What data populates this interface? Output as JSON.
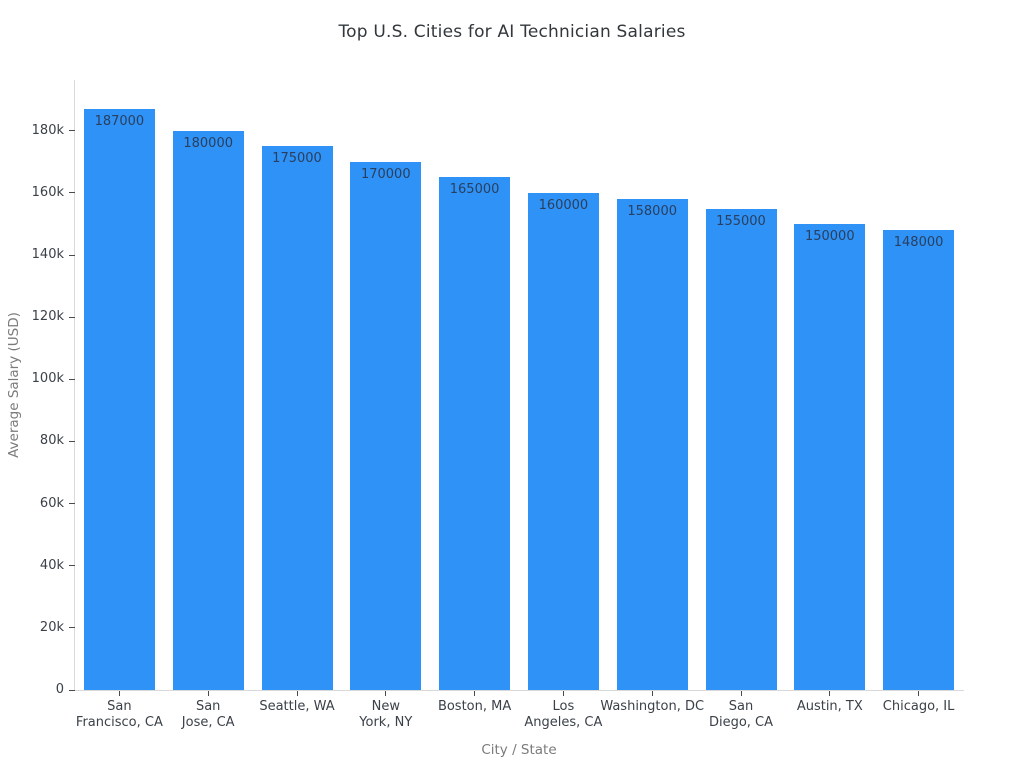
{
  "figure": {
    "background": "#ffffff"
  },
  "chart_data": {
    "type": "bar",
    "title": "Top U.S. Cities for AI Technician Salaries",
    "xlabel": "City / State",
    "ylabel": "Average Salary (USD)",
    "categories": [
      "San Francisco, CA",
      "San Jose, CA",
      "Seattle, WA",
      "New York, NY",
      "Boston, MA",
      "Los Angeles, CA",
      "Washington, DC",
      "San Diego, CA",
      "Austin, TX",
      "Chicago, IL"
    ],
    "category_lines": [
      [
        "San",
        "Francisco, CA"
      ],
      [
        "San",
        "Jose, CA"
      ],
      [
        "Seattle, WA"
      ],
      [
        "New",
        "York, NY"
      ],
      [
        "Boston, MA"
      ],
      [
        "Los",
        "Angeles, CA"
      ],
      [
        "Washington, DC"
      ],
      [
        "San",
        "Diego, CA"
      ],
      [
        "Austin, TX"
      ],
      [
        "Chicago, IL"
      ]
    ],
    "values": [
      187000,
      180000,
      175000,
      170000,
      165000,
      160000,
      158000,
      155000,
      150000,
      148000
    ],
    "ylim": [
      0,
      196350
    ],
    "yticks": [
      {
        "value": 0,
        "label": "0"
      },
      {
        "value": 20000,
        "label": "20k"
      },
      {
        "value": 40000,
        "label": "40k"
      },
      {
        "value": 60000,
        "label": "60k"
      },
      {
        "value": 80000,
        "label": "80k"
      },
      {
        "value": 100000,
        "label": "100k"
      },
      {
        "value": 120000,
        "label": "120k"
      },
      {
        "value": 140000,
        "label": "140k"
      },
      {
        "value": 160000,
        "label": "160k"
      },
      {
        "value": 180000,
        "label": "180k"
      }
    ],
    "grid": false,
    "legend": "none",
    "bar_color": "#2e92f6",
    "value_label_color": "#2a3f5f",
    "axis_line_color": "#d9d9d9",
    "tick_color": "#4a4a4a"
  }
}
